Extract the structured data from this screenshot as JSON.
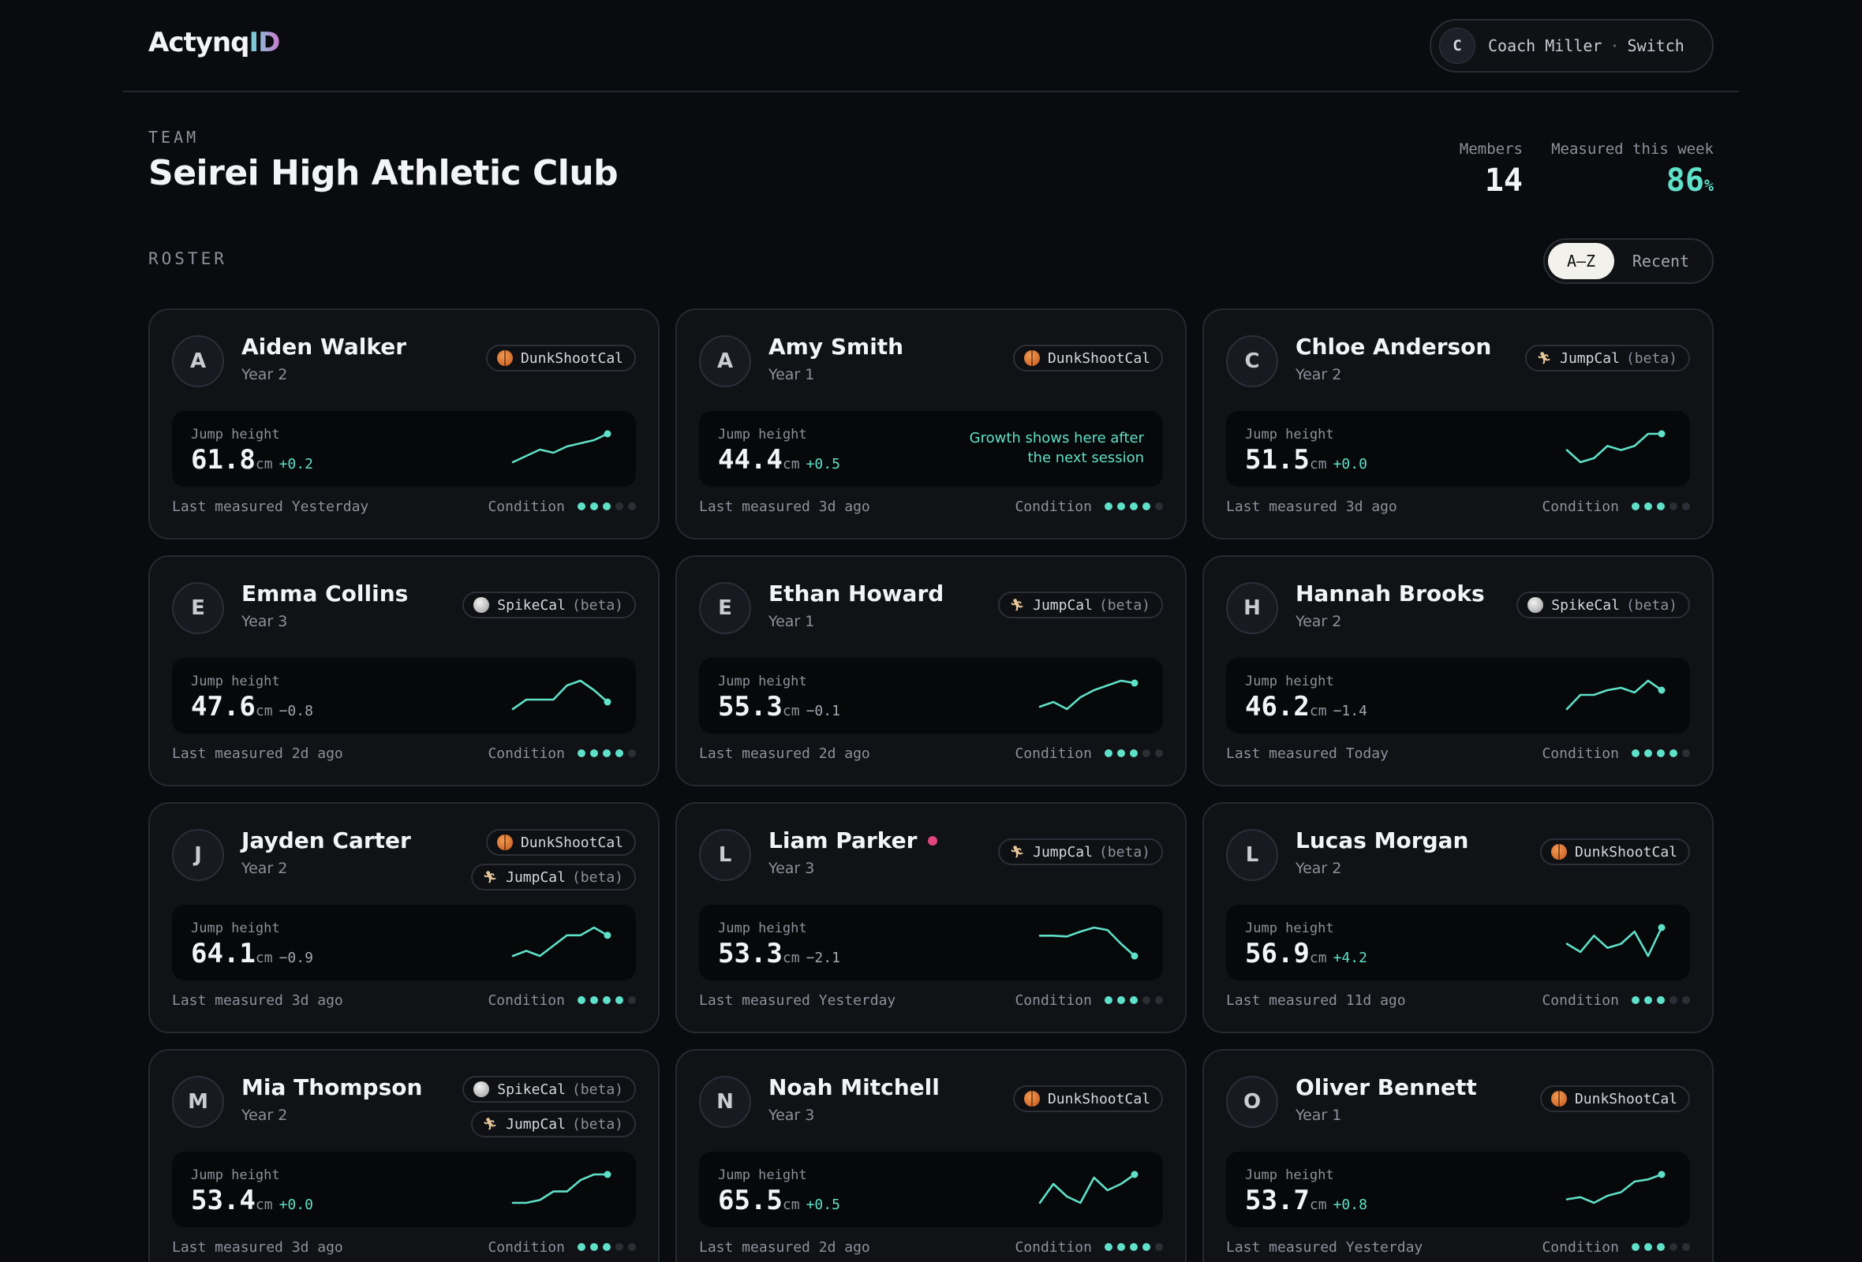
{
  "header": {
    "logo_main": "Actynq",
    "logo_accent": "ID",
    "coach": {
      "initial": "C",
      "name": "Coach Miller",
      "separator": "·",
      "switch_label": "Switch"
    }
  },
  "team": {
    "eyebrow": "TEAM",
    "name": "Seirei High Athletic Club",
    "stats": {
      "members_label": "Members",
      "members_value": "14",
      "measured_label": "Measured this week",
      "measured_value": "86",
      "measured_unit": "%"
    }
  },
  "roster": {
    "label": "ROSTER",
    "sort": {
      "options": [
        "A–Z",
        "Recent"
      ],
      "active": "A–Z"
    },
    "metric_label": "Jump height",
    "unit": "cm",
    "last_prefix": "Last measured",
    "condition_label": "Condition",
    "growth_note_line1": "Growth shows here after",
    "growth_note_line2": "the next session",
    "athletes": [
      {
        "initial": "A",
        "name": "Aiden Walker",
        "year": "Year 2",
        "alert": false,
        "tags": [
          {
            "icon": "basketball-icon",
            "name": "DunkShootCal",
            "beta": ""
          }
        ],
        "value": "61.8",
        "delta": "+0.2",
        "delta_dir": "pos",
        "last": "Yesterday",
        "condition": 3,
        "trend": [
          40,
          42,
          44,
          43,
          45,
          46,
          47,
          49
        ]
      },
      {
        "initial": "A",
        "name": "Amy Smith",
        "year": "Year 1",
        "alert": false,
        "tags": [
          {
            "icon": "basketball-icon",
            "name": "DunkShootCal",
            "beta": ""
          }
        ],
        "value": "44.4",
        "delta": "+0.5",
        "delta_dir": "pos",
        "last": "3d ago",
        "condition": 4,
        "trend": [],
        "growth_note": true
      },
      {
        "initial": "C",
        "name": "Chloe Anderson",
        "year": "Year 2",
        "alert": false,
        "tags": [
          {
            "icon": "jump-icon",
            "name": "JumpCal",
            "beta": "(beta)"
          }
        ],
        "value": "51.5",
        "delta": "+0.0",
        "delta_dir": "pos",
        "last": "3d ago",
        "condition": 3,
        "trend": [
          44,
          41,
          42,
          45,
          44,
          45,
          48,
          48
        ]
      },
      {
        "initial": "E",
        "name": "Emma Collins",
        "year": "Year 3",
        "alert": false,
        "tags": [
          {
            "icon": "volleyball-icon",
            "name": "SpikeCal",
            "beta": "(beta)"
          }
        ],
        "value": "47.6",
        "delta": "−0.8",
        "delta_dir": "neg",
        "last": "2d ago",
        "condition": 4,
        "trend": [
          43,
          45,
          45,
          45,
          48,
          49,
          47,
          44.5
        ]
      },
      {
        "initial": "E",
        "name": "Ethan Howard",
        "year": "Year 1",
        "alert": false,
        "tags": [
          {
            "icon": "jump-icon",
            "name": "JumpCal",
            "beta": "(beta)"
          }
        ],
        "value": "55.3",
        "delta": "−0.1",
        "delta_dir": "neg",
        "last": "2d ago",
        "condition": 3,
        "trend": [
          49,
          50,
          48.5,
          51,
          52.5,
          53.5,
          54.5,
          54
        ]
      },
      {
        "initial": "H",
        "name": "Hannah Brooks",
        "year": "Year 2",
        "alert": false,
        "tags": [
          {
            "icon": "volleyball-icon",
            "name": "SpikeCal",
            "beta": "(beta)"
          }
        ],
        "value": "46.2",
        "delta": "−1.4",
        "delta_dir": "neg",
        "last": "Today",
        "condition": 4,
        "trend": [
          41,
          44,
          44,
          45,
          45.5,
          44.5,
          47,
          45
        ]
      },
      {
        "initial": "J",
        "name": "Jayden Carter",
        "year": "Year 2",
        "alert": false,
        "tags": [
          {
            "icon": "basketball-icon",
            "name": "DunkShootCal",
            "beta": ""
          },
          {
            "icon": "jump-icon",
            "name": "JumpCal",
            "beta": "(beta)"
          }
        ],
        "value": "64.1",
        "delta": "−0.9",
        "delta_dir": "neg",
        "last": "3d ago",
        "condition": 4,
        "trend": [
          58,
          59,
          58,
          60,
          62,
          62,
          63.5,
          62
        ]
      },
      {
        "initial": "L",
        "name": "Liam Parker",
        "year": "Year 3",
        "alert": true,
        "tags": [
          {
            "icon": "jump-icon",
            "name": "JumpCal",
            "beta": "(beta)"
          }
        ],
        "value": "53.3",
        "delta": "−2.1",
        "delta_dir": "neg",
        "last": "Yesterday",
        "condition": 3,
        "trend": [
          55.5,
          55.5,
          55.4,
          56,
          56.5,
          56.2,
          54.5,
          53
        ]
      },
      {
        "initial": "L",
        "name": "Lucas Morgan",
        "year": "Year 2",
        "alert": false,
        "tags": [
          {
            "icon": "basketball-icon",
            "name": "DunkShootCal",
            "beta": ""
          }
        ],
        "value": "56.9",
        "delta": "+4.2",
        "delta_dir": "pos",
        "last": "11d ago",
        "condition": 3,
        "trend": [
          52,
          50,
          54,
          51,
          52,
          55,
          49,
          56
        ]
      },
      {
        "initial": "M",
        "name": "Mia Thompson",
        "year": "Year 2",
        "alert": false,
        "tags": [
          {
            "icon": "volleyball-icon",
            "name": "SpikeCal",
            "beta": "(beta)"
          },
          {
            "icon": "jump-icon",
            "name": "JumpCal",
            "beta": "(beta)"
          }
        ],
        "value": "53.4",
        "delta": "+0.0",
        "delta_dir": "pos",
        "last": "3d ago",
        "condition": 3,
        "trend": [
          49,
          49,
          49.5,
          51,
          51,
          53,
          54,
          54
        ]
      },
      {
        "initial": "N",
        "name": "Noah Mitchell",
        "year": "Year 3",
        "alert": false,
        "tags": [
          {
            "icon": "basketball-icon",
            "name": "DunkShootCal",
            "beta": ""
          }
        ],
        "value": "65.5",
        "delta": "+0.5",
        "delta_dir": "pos",
        "last": "2d ago",
        "condition": 4,
        "trend": [
          60,
          63,
          61,
          60,
          64,
          62,
          63,
          64.5
        ]
      },
      {
        "initial": "O",
        "name": "Oliver Bennett",
        "year": "Year 1",
        "alert": false,
        "tags": [
          {
            "icon": "basketball-icon",
            "name": "DunkShootCal",
            "beta": ""
          }
        ],
        "value": "53.7",
        "delta": "+0.8",
        "delta_dir": "pos",
        "last": "Yesterday",
        "condition": 3,
        "trend": [
          49,
          49.3,
          48.5,
          49.5,
          50,
          51.5,
          51.8,
          52.5
        ]
      }
    ]
  },
  "colors": {
    "accent": "#5fe0c8",
    "alert": "#e0457b",
    "background": "#0a0b0e",
    "card": "#101216"
  }
}
